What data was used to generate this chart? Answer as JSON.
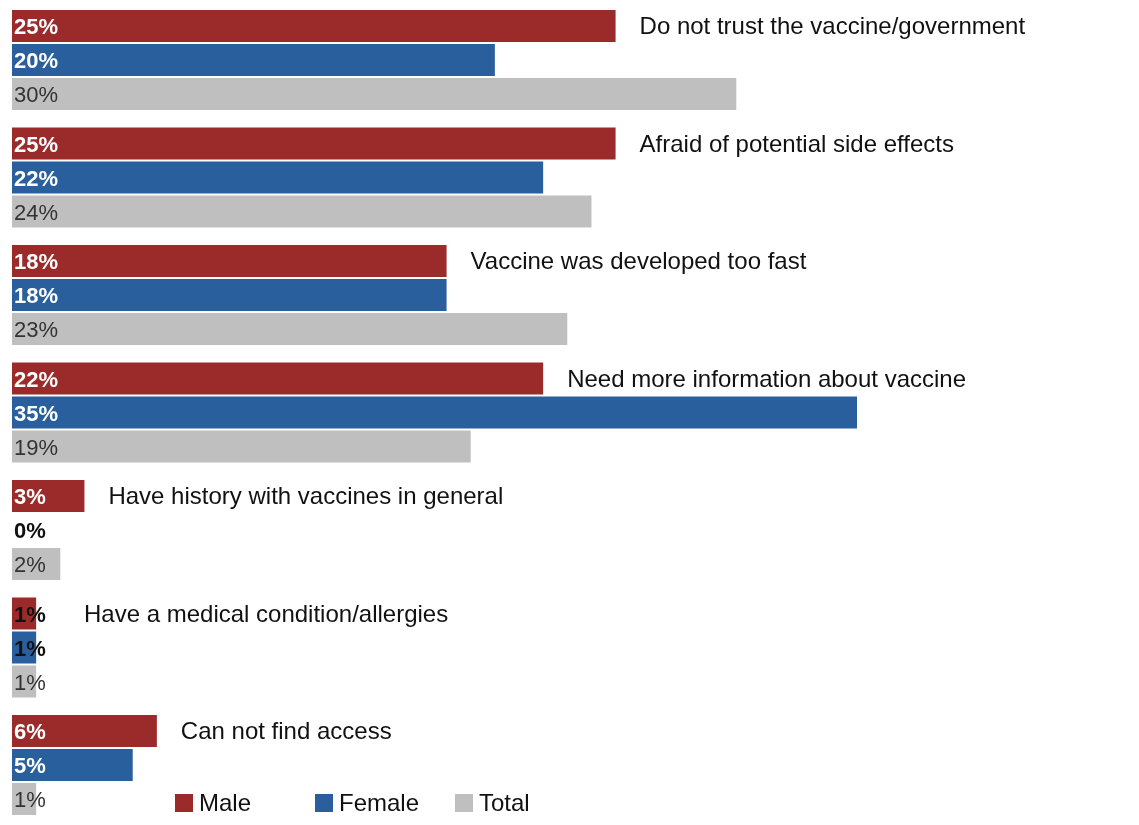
{
  "chart_data": {
    "type": "bar",
    "orientation": "horizontal",
    "categories": [
      "Do not trust the vaccine/government",
      "Afraid of potential side effects",
      "Vaccine was developed too fast",
      "Need more information about vaccine",
      "Have history with vaccines in general",
      "Have a medical condition/allergies",
      "Can not find access"
    ],
    "series": [
      {
        "name": "Male",
        "color": "#9b2b2b",
        "values": [
          25,
          25,
          18,
          22,
          3,
          1,
          6
        ],
        "value_labels": [
          "25%",
          "25%",
          "18%",
          "22%",
          "3%",
          "1%",
          "6%"
        ]
      },
      {
        "name": "Female",
        "color": "#2a5f9e",
        "values": [
          20,
          22,
          18,
          35,
          0,
          1,
          5
        ],
        "value_labels": [
          "20%",
          "22%",
          "18%",
          "35%",
          "0%",
          "1%",
          "5%"
        ]
      },
      {
        "name": "Total",
        "color": "#bfbfbf",
        "values": [
          30,
          24,
          23,
          19,
          2,
          1,
          1
        ],
        "value_labels": [
          "30%",
          "24%",
          "23%",
          "19%",
          "2%",
          "1%",
          "1%"
        ]
      }
    ],
    "legend": "bottom"
  }
}
